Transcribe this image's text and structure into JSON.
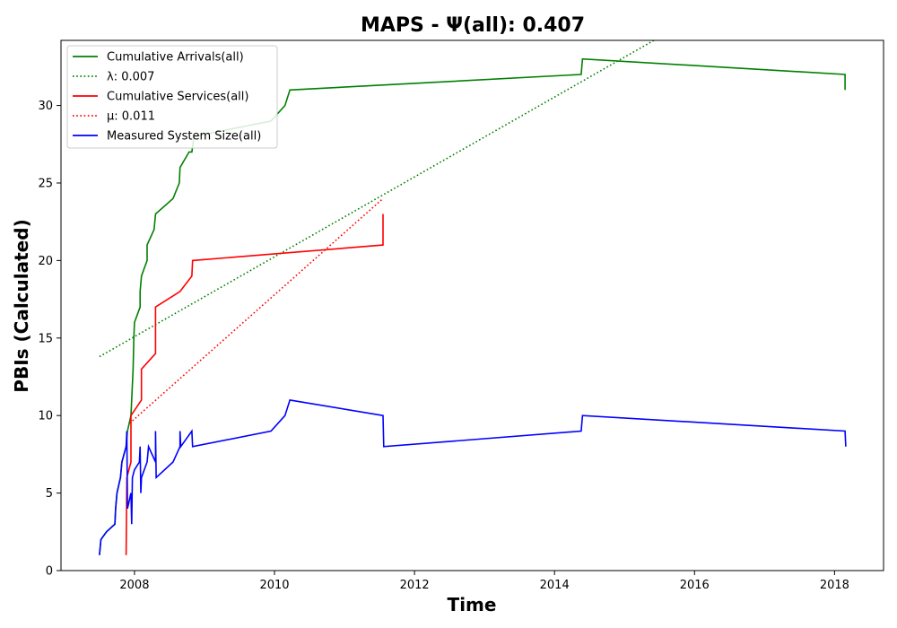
{
  "chart_data": {
    "type": "line",
    "title": "MAPS -  Ψ(all): 0.407",
    "xlabel": "Time",
    "ylabel": "PBIs (Calculated)",
    "xlim": [
      2006.95,
      2018.7
    ],
    "ylim": [
      0,
      34.2
    ],
    "xticks": [
      2008,
      2010,
      2012,
      2014,
      2016,
      2018
    ],
    "yticks": [
      0,
      5,
      10,
      15,
      20,
      25,
      30
    ],
    "legend_position": "upper-left",
    "grid": false,
    "series": [
      {
        "name": "Cumulative Arrivals(all)",
        "style": "solid",
        "color": "#008000",
        "points": [
          [
            2007.5,
            1
          ],
          [
            2007.52,
            2
          ],
          [
            2007.6,
            2.5
          ],
          [
            2007.72,
            3
          ],
          [
            2007.73,
            4
          ],
          [
            2007.75,
            5
          ],
          [
            2007.8,
            6
          ],
          [
            2007.82,
            7
          ],
          [
            2007.88,
            8
          ],
          [
            2007.9,
            9
          ],
          [
            2007.95,
            10
          ],
          [
            2007.96,
            11
          ],
          [
            2007.97,
            12
          ],
          [
            2007.98,
            13
          ],
          [
            2007.99,
            15
          ],
          [
            2008.0,
            16
          ],
          [
            2008.08,
            17
          ],
          [
            2008.08,
            18
          ],
          [
            2008.1,
            19
          ],
          [
            2008.18,
            20
          ],
          [
            2008.18,
            21
          ],
          [
            2008.28,
            22
          ],
          [
            2008.3,
            23
          ],
          [
            2008.55,
            24
          ],
          [
            2008.64,
            25
          ],
          [
            2008.65,
            26
          ],
          [
            2008.78,
            27
          ],
          [
            2008.82,
            27
          ],
          [
            2008.85,
            28
          ],
          [
            2009.95,
            29
          ],
          [
            2010.15,
            30
          ],
          [
            2010.22,
            31
          ],
          [
            2014.38,
            32
          ],
          [
            2014.4,
            33
          ],
          [
            2018.15,
            32
          ],
          [
            2018.15,
            31
          ]
        ]
      },
      {
        "name": "λ: 0.007",
        "style": "dotted",
        "color": "#008000",
        "points": [
          [
            2007.5,
            13.8
          ],
          [
            2015.42,
            34.2
          ]
        ]
      },
      {
        "name": "Cumulative Services(all)",
        "style": "solid",
        "color": "#ff0000",
        "points": [
          [
            2007.88,
            1
          ],
          [
            2007.89,
            6
          ],
          [
            2007.95,
            7
          ],
          [
            2007.95,
            10
          ],
          [
            2008.1,
            11
          ],
          [
            2008.1,
            13
          ],
          [
            2008.3,
            14
          ],
          [
            2008.3,
            17
          ],
          [
            2008.65,
            18
          ],
          [
            2008.82,
            19
          ],
          [
            2008.83,
            20
          ],
          [
            2011.55,
            21
          ],
          [
            2011.55,
            23
          ]
        ]
      },
      {
        "name": "μ: 0.011",
        "style": "dotted",
        "color": "#ff0000",
        "points": [
          [
            2007.93,
            9.5
          ],
          [
            2011.55,
            24
          ]
        ]
      },
      {
        "name": "Measured System Size(all)",
        "style": "solid",
        "color": "#0000ff",
        "points": [
          [
            2007.5,
            1
          ],
          [
            2007.52,
            2
          ],
          [
            2007.6,
            2.5
          ],
          [
            2007.72,
            3
          ],
          [
            2007.73,
            4
          ],
          [
            2007.75,
            5
          ],
          [
            2007.8,
            6
          ],
          [
            2007.82,
            7
          ],
          [
            2007.88,
            8
          ],
          [
            2007.89,
            9
          ],
          [
            2007.9,
            4
          ],
          [
            2007.95,
            5
          ],
          [
            2007.96,
            3
          ],
          [
            2007.97,
            6
          ],
          [
            2008.0,
            6.5
          ],
          [
            2008.07,
            7
          ],
          [
            2008.08,
            8
          ],
          [
            2008.09,
            5
          ],
          [
            2008.1,
            6
          ],
          [
            2008.18,
            7
          ],
          [
            2008.2,
            8
          ],
          [
            2008.3,
            7
          ],
          [
            2008.3,
            9
          ],
          [
            2008.31,
            6
          ],
          [
            2008.55,
            7
          ],
          [
            2008.65,
            8
          ],
          [
            2008.65,
            9
          ],
          [
            2008.66,
            8
          ],
          [
            2008.82,
            9
          ],
          [
            2008.83,
            8
          ],
          [
            2009.95,
            9
          ],
          [
            2010.15,
            10
          ],
          [
            2010.22,
            11
          ],
          [
            2011.55,
            10
          ],
          [
            2011.56,
            8
          ],
          [
            2014.38,
            9
          ],
          [
            2014.4,
            10
          ],
          [
            2018.15,
            9
          ],
          [
            2018.16,
            8
          ]
        ]
      }
    ]
  }
}
